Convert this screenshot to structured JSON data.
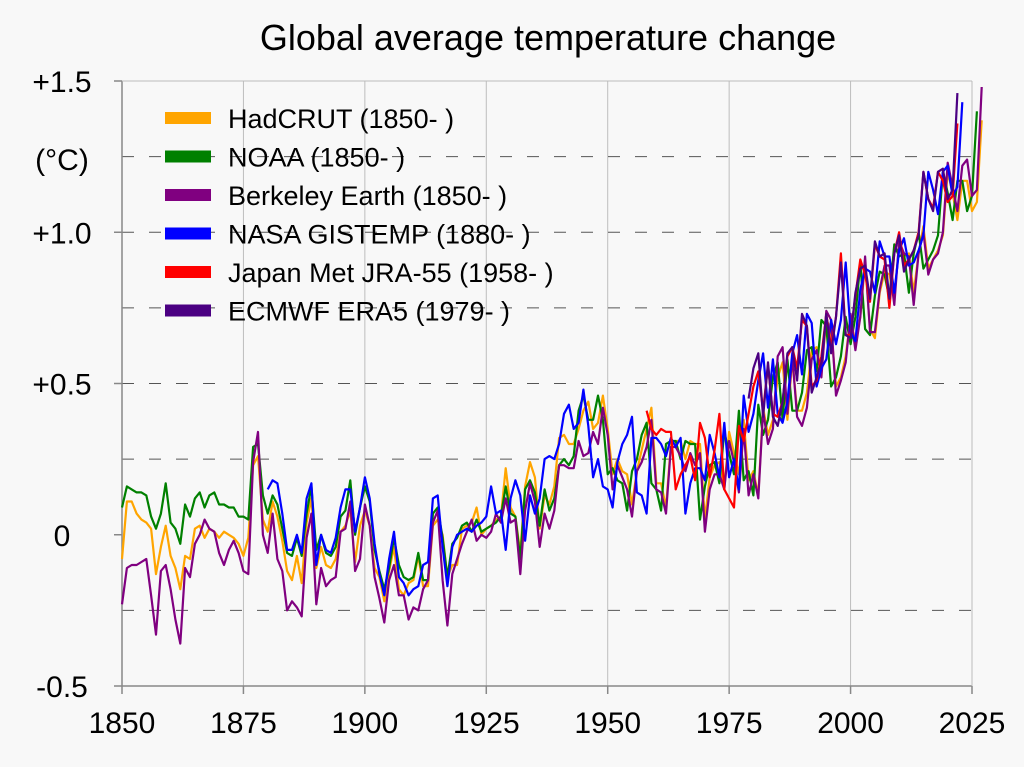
{
  "chart_data": {
    "type": "line",
    "title": "Global average temperature change",
    "unit_label": "(°C)",
    "xlabel": "",
    "ylabel": "",
    "xlim": [
      1850,
      2025
    ],
    "ylim": [
      -0.5,
      1.5
    ],
    "x_ticks": [
      1850,
      1875,
      1900,
      1925,
      1950,
      1975,
      2000,
      2025
    ],
    "x_tick_labels": [
      "1850",
      "1875",
      "1900",
      "1925",
      "1950",
      "1975",
      "2000",
      "2025"
    ],
    "y_ticks": [
      -0.5,
      0,
      0.5,
      1.0,
      1.5
    ],
    "y_tick_labels": [
      "-0.5",
      "0",
      "+0.5",
      "+1.0",
      "+1.5"
    ],
    "y_dashed_gridlines": [
      -0.25,
      0.25,
      0.5,
      0.75,
      1.0,
      1.25
    ],
    "x_gridlines": "vertical at 25-year ticks",
    "legend_position": "top-left",
    "series": [
      {
        "name": "HadCRUT (1850- )",
        "color": "#ffa500",
        "start": 1850,
        "values": [
          -0.08,
          0.11,
          0.11,
          0.07,
          0.05,
          0.04,
          0.02,
          -0.13,
          -0.04,
          0.03,
          -0.07,
          -0.11,
          -0.18,
          -0.07,
          -0.08,
          0.02,
          0.03,
          -0.01,
          0.02,
          0.01,
          -0.01,
          0.01,
          0.0,
          -0.01,
          -0.03,
          -0.07,
          -0.01,
          0.23,
          0.26,
          0.05,
          0.01,
          0.11,
          0.06,
          -0.02,
          -0.12,
          -0.15,
          -0.07,
          -0.16,
          0.04,
          0.12,
          -0.11,
          -0.04,
          -0.1,
          -0.11,
          -0.08,
          0.01,
          0.03,
          0.08,
          -0.09,
          0.03,
          0.08,
          0.03,
          -0.11,
          -0.14,
          -0.22,
          -0.12,
          -0.04,
          -0.18,
          -0.2,
          -0.16,
          -0.15,
          -0.07,
          -0.17,
          -0.17,
          0.03,
          0.05,
          0.0,
          -0.14,
          -0.1,
          -0.1,
          0.02,
          0.03,
          0.04,
          0.09,
          -0.0,
          0.02,
          0.03,
          0.05,
          0.06,
          0.22,
          0.09,
          0.06,
          -0.06,
          0.16,
          0.24,
          0.19,
          0.02,
          0.13,
          0.1,
          0.16,
          0.32,
          0.33,
          0.3,
          0.3,
          0.35,
          0.41,
          0.44,
          0.35,
          0.37,
          0.46,
          0.35,
          0.2,
          0.25,
          0.21,
          0.2,
          0.1,
          0.21,
          0.28,
          0.35,
          0.42,
          0.17,
          0.17,
          0.09,
          0.3,
          0.31,
          0.31,
          0.25,
          0.31,
          0.3,
          0.3,
          0.05,
          0.19,
          0.23,
          0.24,
          0.15,
          0.34,
          0.27,
          0.2,
          0.38,
          0.18,
          0.21,
          0.13,
          0.42,
          0.33,
          0.38,
          0.52,
          0.57,
          0.38,
          0.58,
          0.41,
          0.41,
          0.47,
          0.61,
          0.62,
          0.54,
          0.71,
          0.68,
          0.49,
          0.52,
          0.59,
          0.72,
          0.63,
          0.72,
          0.9,
          0.68,
          0.65,
          0.8,
          0.87,
          0.86,
          0.78,
          0.96,
          0.92,
          0.93,
          0.8,
          0.93,
          1.02,
          0.88,
          0.91,
          0.94,
          0.99,
          1.2,
          1.13,
          1.04,
          1.17,
          1.17,
          1.07,
          1.1,
          1.37
        ]
      },
      {
        "name": "NOAA (1850- )",
        "color": "#008000",
        "start": 1850,
        "values": [
          0.09,
          0.16,
          0.15,
          0.14,
          0.14,
          0.13,
          0.06,
          0.02,
          0.07,
          0.17,
          0.04,
          0.02,
          -0.03,
          0.1,
          0.06,
          0.12,
          0.14,
          0.09,
          0.13,
          0.14,
          0.1,
          0.1,
          0.09,
          0.09,
          0.06,
          0.06,
          0.05,
          0.29,
          0.3,
          0.13,
          0.07,
          0.13,
          0.1,
          0.02,
          -0.06,
          -0.07,
          -0.01,
          -0.07,
          0.07,
          0.16,
          -0.05,
          0.0,
          -0.06,
          -0.07,
          -0.04,
          0.06,
          0.08,
          0.18,
          0.0,
          0.09,
          0.16,
          0.11,
          -0.05,
          -0.12,
          -0.18,
          -0.11,
          -0.01,
          -0.1,
          -0.14,
          -0.15,
          -0.14,
          -0.06,
          -0.15,
          -0.15,
          0.07,
          0.09,
          -0.01,
          -0.14,
          -0.03,
          -0.01,
          0.03,
          0.04,
          0.01,
          0.05,
          0.01,
          0.02,
          0.03,
          0.04,
          0.06,
          0.16,
          0.07,
          0.06,
          -0.08,
          0.15,
          0.18,
          0.14,
          0.03,
          0.15,
          0.08,
          0.12,
          0.23,
          0.25,
          0.23,
          0.26,
          0.41,
          0.46,
          0.38,
          0.38,
          0.46,
          0.38,
          0.2,
          0.22,
          0.18,
          0.17,
          0.08,
          0.21,
          0.25,
          0.33,
          0.37,
          0.17,
          0.15,
          0.08,
          0.3,
          0.31,
          0.31,
          0.25,
          0.31,
          0.3,
          0.3,
          0.05,
          0.16,
          0.23,
          0.24,
          0.17,
          0.34,
          0.27,
          0.2,
          0.41,
          0.18,
          0.21,
          0.13,
          0.43,
          0.33,
          0.38,
          0.52,
          0.57,
          0.38,
          0.58,
          0.41,
          0.41,
          0.47,
          0.61,
          0.62,
          0.54,
          0.71,
          0.69,
          0.49,
          0.52,
          0.59,
          0.72,
          0.63,
          0.72,
          0.9,
          0.68,
          0.66,
          0.79,
          0.87,
          0.86,
          0.78,
          0.96,
          0.92,
          0.93,
          0.8,
          0.93,
          1.0,
          0.88,
          0.91,
          0.94,
          0.99,
          1.2,
          1.13,
          1.04,
          1.17,
          1.17,
          1.07,
          1.12,
          1.4
        ]
      },
      {
        "name": "Berkeley Earth (1850- )",
        "color": "#800080",
        "start": 1850,
        "values": [
          -0.23,
          -0.11,
          -0.1,
          -0.1,
          -0.09,
          -0.08,
          -0.2,
          -0.33,
          -0.12,
          -0.1,
          -0.18,
          -0.28,
          -0.36,
          -0.11,
          -0.14,
          -0.03,
          0.0,
          0.05,
          0.02,
          0.01,
          -0.06,
          -0.1,
          -0.05,
          -0.02,
          -0.06,
          -0.12,
          -0.13,
          0.24,
          0.34,
          0.0,
          -0.06,
          0.07,
          -0.08,
          -0.12,
          -0.25,
          -0.22,
          -0.24,
          -0.27,
          -0.01,
          0.07,
          -0.23,
          -0.11,
          -0.17,
          -0.15,
          -0.14,
          0.01,
          0.02,
          0.11,
          -0.12,
          -0.08,
          0.1,
          0.03,
          -0.14,
          -0.21,
          -0.29,
          -0.15,
          -0.1,
          -0.2,
          -0.2,
          -0.28,
          -0.24,
          -0.25,
          -0.18,
          -0.15,
          0.04,
          0.08,
          -0.15,
          -0.3,
          -0.13,
          -0.08,
          -0.03,
          0.01,
          0.05,
          -0.02,
          0.0,
          -0.01,
          0.01,
          0.07,
          0.04,
          0.12,
          0.04,
          0.05,
          -0.13,
          0.08,
          0.17,
          0.11,
          -0.04,
          0.07,
          0.02,
          0.08,
          0.23,
          0.23,
          0.22,
          0.22,
          0.31,
          0.26,
          0.27,
          0.34,
          0.3,
          0.42,
          0.33,
          0.15,
          0.23,
          0.19,
          0.15,
          0.06,
          0.21,
          0.24,
          0.29,
          0.38,
          0.15,
          0.14,
          0.07,
          0.29,
          0.29,
          0.26,
          0.21,
          0.27,
          0.23,
          0.27,
          0.01,
          0.15,
          0.2,
          0.2,
          0.15,
          0.31,
          0.24,
          0.14,
          0.35,
          0.13,
          0.2,
          0.12,
          0.41,
          0.3,
          0.35,
          0.59,
          0.62,
          0.4,
          0.59,
          0.39,
          0.36,
          0.42,
          0.58,
          0.61,
          0.52,
          0.74,
          0.71,
          0.46,
          0.51,
          0.57,
          0.73,
          0.61,
          0.72,
          0.92,
          0.67,
          0.67,
          0.81,
          0.89,
          0.89,
          0.76,
          0.97,
          0.93,
          0.92,
          0.76,
          0.93,
          1.0,
          0.86,
          0.91,
          0.93,
          1.0,
          1.23,
          1.15,
          1.07,
          1.22,
          1.24,
          1.12,
          1.14,
          1.48
        ]
      },
      {
        "name": "NASA GISTEMP (1880- )",
        "color": "#0000ff",
        "start": 1880,
        "values": [
          0.15,
          0.18,
          0.17,
          0.07,
          -0.05,
          -0.05,
          0.0,
          -0.06,
          0.12,
          0.17,
          -0.1,
          0.0,
          -0.05,
          -0.06,
          -0.01,
          0.09,
          0.15,
          0.15,
          0.01,
          0.09,
          0.19,
          0.12,
          -0.03,
          -0.13,
          -0.2,
          -0.08,
          0.01,
          -0.14,
          -0.16,
          -0.2,
          -0.18,
          -0.17,
          -0.1,
          -0.09,
          0.12,
          0.13,
          -0.04,
          -0.17,
          -0.04,
          0.0,
          0.01,
          0.02,
          0.01,
          0.03,
          0.04,
          0.06,
          0.16,
          0.07,
          0.08,
          -0.05,
          0.12,
          0.18,
          0.13,
          -0.02,
          0.13,
          0.07,
          0.12,
          0.25,
          0.26,
          0.25,
          0.3,
          0.4,
          0.43,
          0.35,
          0.37,
          0.48,
          0.36,
          0.19,
          0.25,
          0.16,
          0.15,
          0.09,
          0.24,
          0.3,
          0.33,
          0.39,
          0.14,
          0.13,
          0.07,
          0.32,
          0.32,
          0.3,
          0.26,
          0.32,
          0.29,
          0.32,
          0.07,
          0.17,
          0.22,
          0.22,
          0.18,
          0.33,
          0.27,
          0.19,
          0.37,
          0.19,
          0.25,
          0.15,
          0.46,
          0.34,
          0.4,
          0.51,
          0.6,
          0.42,
          0.58,
          0.4,
          0.37,
          0.44,
          0.6,
          0.66,
          0.53,
          0.73,
          0.7,
          0.49,
          0.55,
          0.58,
          0.71,
          0.63,
          0.71,
          0.9,
          0.67,
          0.64,
          0.81,
          0.88,
          0.87,
          0.8,
          0.97,
          0.92,
          0.92,
          0.8,
          0.94,
          0.98,
          0.89,
          0.9,
          0.94,
          0.99,
          1.2,
          1.14,
          1.06,
          1.2,
          1.22,
          1.12,
          1.15,
          1.43
        ]
      },
      {
        "name": "Japan Met JRA-55 (1958- )",
        "color": "#ff0000",
        "start": 1958,
        "values": [
          0.41,
          0.35,
          0.33,
          0.35,
          0.34,
          0.34,
          0.15,
          0.2,
          0.23,
          0.26,
          0.18,
          0.37,
          0.32,
          0.19,
          0.28,
          0.4,
          0.15,
          0.12,
          0.09,
          0.36,
          0.31,
          0.4,
          0.49,
          0.54,
          0.41,
          0.56,
          0.4,
          0.39,
          0.44,
          0.59,
          0.62,
          0.55,
          0.71,
          0.69,
          0.49,
          0.51,
          0.59,
          0.73,
          0.62,
          0.72,
          0.93,
          0.66,
          0.66,
          0.79,
          0.91,
          0.86,
          0.77,
          0.96,
          0.92,
          0.91,
          0.75,
          0.93,
          1.0,
          0.89,
          0.91,
          0.94,
          1.0,
          1.2,
          1.11,
          1.08,
          1.2,
          1.17,
          1.1,
          1.12,
          1.36
        ]
      },
      {
        "name": "ECMWF ERA5 (1979- )",
        "color": "#4b0082",
        "start": 1979,
        "values": [
          0.45,
          0.55,
          0.6,
          0.39,
          0.57,
          0.39,
          0.36,
          0.44,
          0.6,
          0.62,
          0.51,
          0.73,
          0.69,
          0.47,
          0.52,
          0.57,
          0.73,
          0.6,
          0.72,
          0.9,
          0.66,
          0.65,
          0.8,
          0.88,
          0.89,
          0.78,
          0.97,
          0.92,
          0.93,
          0.78,
          0.93,
          0.99,
          0.87,
          0.91,
          0.94,
          0.99,
          1.2,
          1.11,
          1.07,
          1.2,
          1.21,
          1.11,
          1.14,
          1.46
        ]
      }
    ]
  }
}
